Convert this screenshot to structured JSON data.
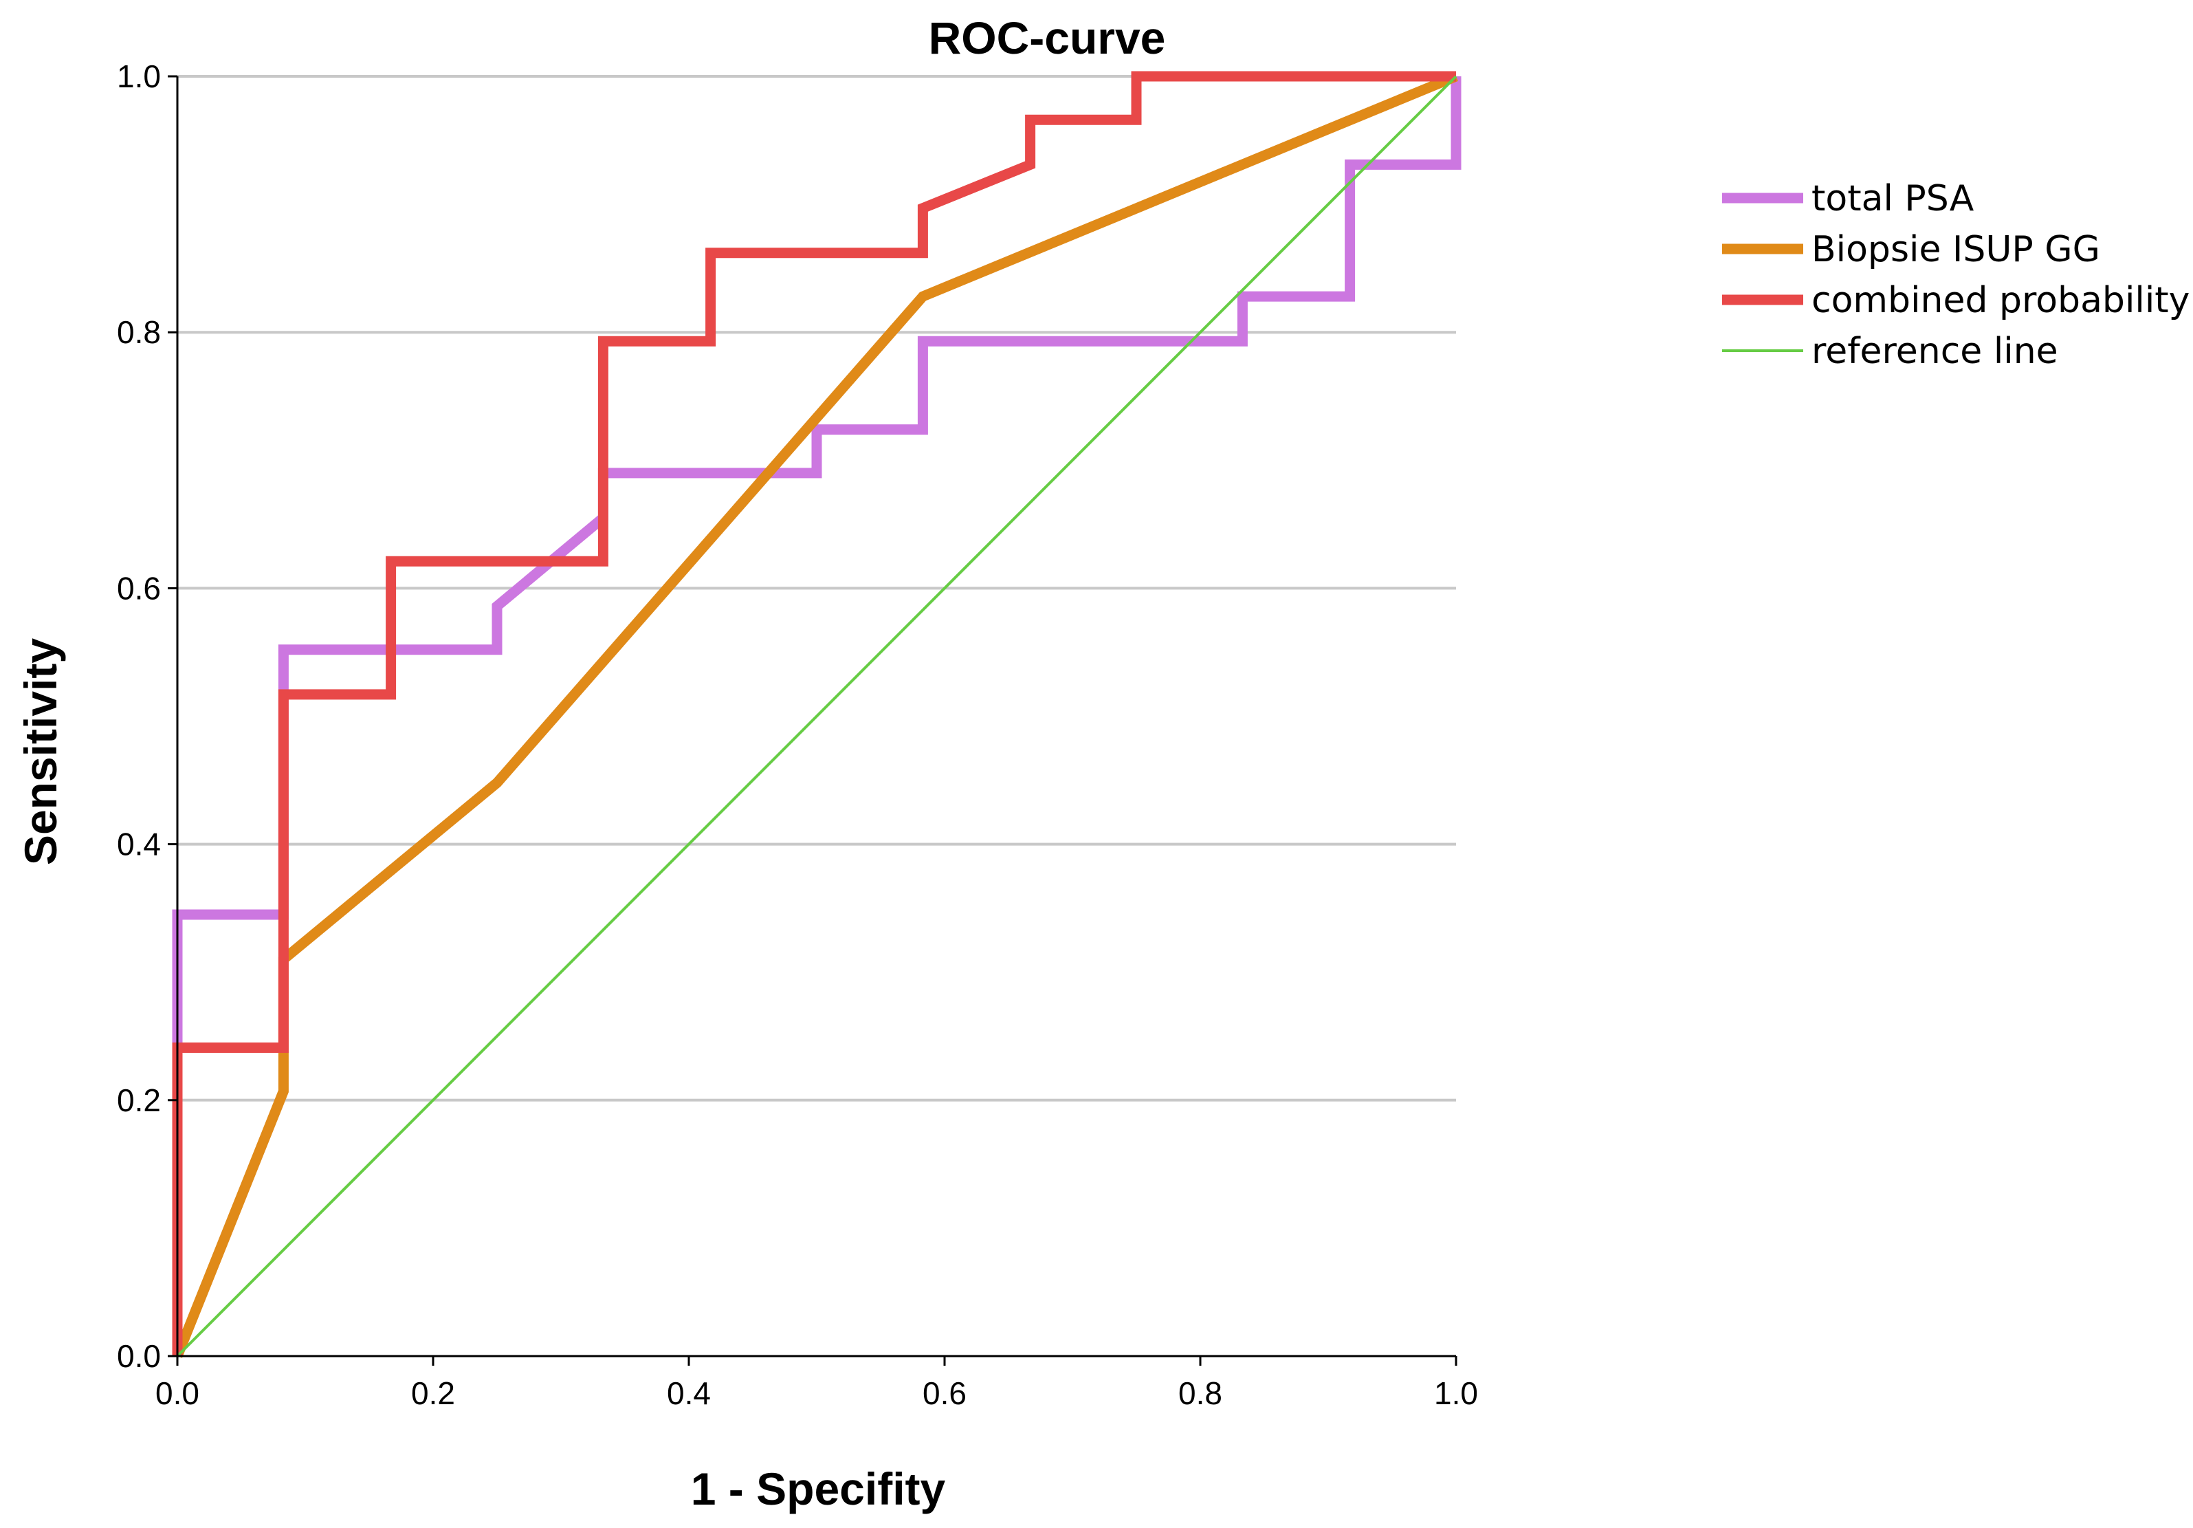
{
  "chart_data": {
    "type": "line",
    "title": "ROC-curve",
    "xlabel": "1 - Specifity",
    "ylabel": "Sensitivity",
    "xlim": [
      0,
      1
    ],
    "ylim": [
      0,
      1
    ],
    "xticks": [
      "0.0",
      "0.2",
      "0.4",
      "0.6",
      "0.8",
      "1.0"
    ],
    "yticks": [
      "0.0",
      "0.2",
      "0.4",
      "0.6",
      "0.8",
      "1.0"
    ],
    "grid": "horizontal",
    "legend_position": "right",
    "series": [
      {
        "name": "total PSA",
        "color": "#cc77e0",
        "width": "thick",
        "points": [
          [
            0,
            0
          ],
          [
            0,
            0.345
          ],
          [
            0.083,
            0.345
          ],
          [
            0.083,
            0.552
          ],
          [
            0.25,
            0.552
          ],
          [
            0.25,
            0.586
          ],
          [
            0.333,
            0.655
          ],
          [
            0.333,
            0.69
          ],
          [
            0.5,
            0.69
          ],
          [
            0.5,
            0.724
          ],
          [
            0.583,
            0.724
          ],
          [
            0.583,
            0.793
          ],
          [
            0.833,
            0.793
          ],
          [
            0.833,
            0.828
          ],
          [
            0.917,
            0.828
          ],
          [
            0.917,
            0.931
          ],
          [
            1,
            0.931
          ],
          [
            1,
            1
          ]
        ]
      },
      {
        "name": "Biopsie ISUP GG",
        "color": "#e08a18",
        "width": "thick",
        "points": [
          [
            0,
            0
          ],
          [
            0.083,
            0.207
          ],
          [
            0.083,
            0.31
          ],
          [
            0.25,
            0.448
          ],
          [
            0.583,
            0.828
          ],
          [
            1,
            1
          ]
        ]
      },
      {
        "name": "combined probability",
        "color": "#e84848",
        "width": "thick",
        "points": [
          [
            0,
            0
          ],
          [
            0,
            0.241
          ],
          [
            0.083,
            0.241
          ],
          [
            0.083,
            0.517
          ],
          [
            0.167,
            0.517
          ],
          [
            0.167,
            0.621
          ],
          [
            0.333,
            0.621
          ],
          [
            0.333,
            0.793
          ],
          [
            0.417,
            0.793
          ],
          [
            0.417,
            0.862
          ],
          [
            0.583,
            0.862
          ],
          [
            0.583,
            0.897
          ],
          [
            0.667,
            0.931
          ],
          [
            0.667,
            0.966
          ],
          [
            0.75,
            0.966
          ],
          [
            0.75,
            1
          ],
          [
            1,
            1
          ]
        ]
      },
      {
        "name": "reference line",
        "color": "#66cc44",
        "width": "thin",
        "points": [
          [
            0,
            0
          ],
          [
            1,
            1
          ]
        ]
      }
    ]
  }
}
